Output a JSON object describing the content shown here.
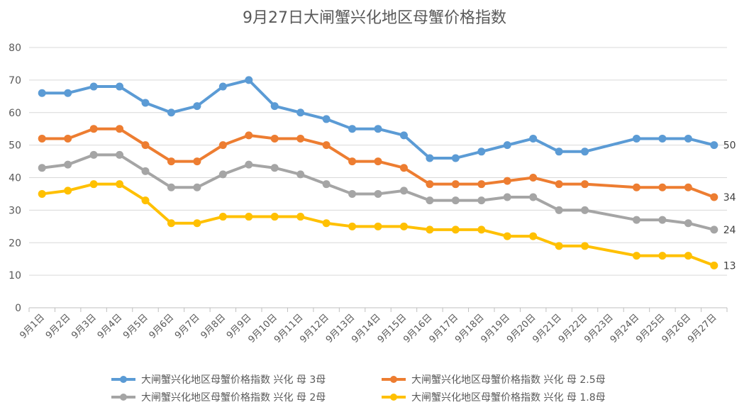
{
  "chart_data": {
    "type": "line",
    "title": "9月27日大闸蟹兴化地区母蟹价格指数",
    "xlabel": "",
    "ylabel": "",
    "ylim": [
      0,
      80
    ],
    "yticks": [
      0,
      10,
      20,
      30,
      40,
      50,
      60,
      70,
      80
    ],
    "grid": true,
    "legend_position": "bottom",
    "categories": [
      "9月1日",
      "9月2日",
      "9月3日",
      "9月4日",
      "9月5日",
      "9月6日",
      "9月7日",
      "9月8日",
      "9月9日",
      "9月10日",
      "9月11日",
      "9月12日",
      "9月13日",
      "9月14日",
      "9月15日",
      "9月16日",
      "9月17日",
      "9月18日",
      "9月19日",
      "9月20日",
      "9月21日",
      "9月22日",
      "9月23日",
      "9月24日",
      "9月25日",
      "9月26日",
      "9月27日"
    ],
    "series": [
      {
        "name": "大闸蟹兴化地区母蟹价格指数 兴化 母 3母",
        "color": "#5B9BD5",
        "values": [
          66,
          66,
          68,
          68,
          63,
          60,
          62,
          68,
          70,
          62,
          60,
          58,
          55,
          55,
          53,
          46,
          46,
          48,
          50,
          52,
          48,
          48,
          null,
          52,
          52,
          52,
          50
        ],
        "end_label": "50"
      },
      {
        "name": "大闸蟹兴化地区母蟹价格指数 兴化 母 2.5母",
        "color": "#ED7D31",
        "values": [
          52,
          52,
          55,
          55,
          50,
          45,
          45,
          50,
          53,
          52,
          52,
          50,
          45,
          45,
          43,
          38,
          38,
          38,
          39,
          40,
          38,
          38,
          null,
          37,
          37,
          37,
          34
        ],
        "end_label": "34"
      },
      {
        "name": "大闸蟹兴化地区母蟹价格指数 兴化 母 2母",
        "color": "#A5A5A5",
        "values": [
          43,
          44,
          47,
          47,
          42,
          37,
          37,
          41,
          44,
          43,
          41,
          38,
          35,
          35,
          36,
          33,
          33,
          33,
          34,
          34,
          30,
          30,
          null,
          27,
          27,
          26,
          24
        ],
        "end_label": "24"
      },
      {
        "name": "大闸蟹兴化地区母蟹价格指数 兴化 母 1.8母",
        "color": "#FFC000",
        "values": [
          35,
          36,
          38,
          38,
          33,
          26,
          26,
          28,
          28,
          28,
          28,
          26,
          25,
          25,
          25,
          24,
          24,
          24,
          22,
          22,
          19,
          19,
          null,
          16,
          16,
          16,
          13
        ],
        "end_label": "13"
      }
    ]
  }
}
